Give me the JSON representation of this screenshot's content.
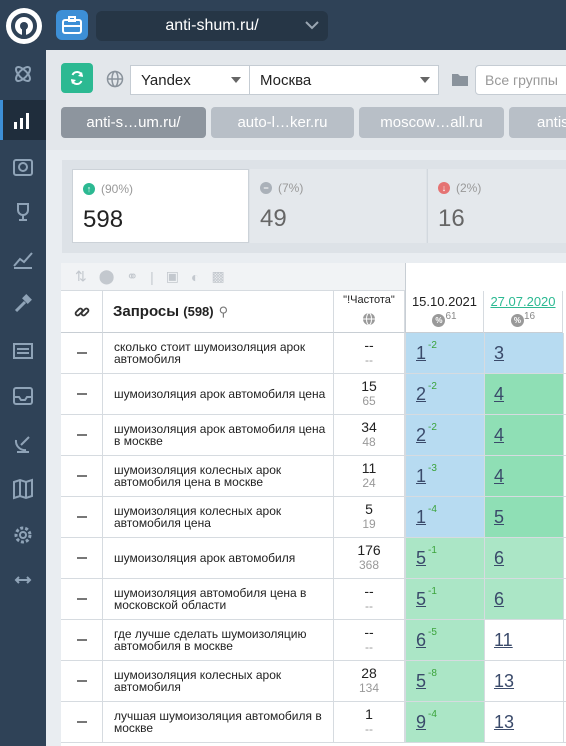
{
  "header": {
    "site": "anti-shum.ru/"
  },
  "toolbar": {
    "engine": "Yandex",
    "region": "Москва",
    "groups_placeholder": "Все группы"
  },
  "tabs": [
    {
      "label": "anti-s…um.ru/"
    },
    {
      "label": "auto-l…ker.ru"
    },
    {
      "label": "moscow…all.ru"
    },
    {
      "label": "antis"
    }
  ],
  "summary": [
    {
      "pct": "(90%)",
      "value": "598",
      "trend": "up"
    },
    {
      "pct": "(7%)",
      "value": "49",
      "trend": "same"
    },
    {
      "pct": "(2%)",
      "value": "16",
      "trend": "down"
    }
  ],
  "table": {
    "queries_label": "Запросы",
    "queries_count": "(598)",
    "freq_label": "\"!Частота\"",
    "date1": "15.10.2021",
    "date1_count": "61",
    "date2": "27.07.2020",
    "date2_count": "16",
    "rows": [
      {
        "query": "сколько стоит шумоизоляция арок автомобиля",
        "freq": "--",
        "freq2": "--",
        "pos1": "1",
        "delta": "-2",
        "pos2": "3",
        "c1": "blue",
        "c2": "blue"
      },
      {
        "query": "шумоизоляция арок автомобиля цена",
        "freq": "15",
        "freq2": "65",
        "pos1": "2",
        "delta": "-2",
        "pos2": "4",
        "c1": "blue",
        "c2": "green"
      },
      {
        "query": "шумоизоляция арок автомобиля цена в москве",
        "freq": "34",
        "freq2": "48",
        "pos1": "2",
        "delta": "-2",
        "pos2": "4",
        "c1": "blue",
        "c2": "green"
      },
      {
        "query": "шумоизоляция колесных арок автомобиля цена в москве",
        "freq": "11",
        "freq2": "24",
        "pos1": "1",
        "delta": "-3",
        "pos2": "4",
        "c1": "blue",
        "c2": "green"
      },
      {
        "query": "шумоизоляция колесных арок автомобиля цена",
        "freq": "5",
        "freq2": "19",
        "pos1": "1",
        "delta": "-4",
        "pos2": "5",
        "c1": "blue",
        "c2": "green"
      },
      {
        "query": "шумоизоляция арок автомобиля",
        "freq": "176",
        "freq2": "368",
        "pos1": "5",
        "delta": "-1",
        "pos2": "6",
        "c1": "lgreen",
        "c2": "lgreen"
      },
      {
        "query": "шумоизоляция автомобиля цена в московской области",
        "freq": "--",
        "freq2": "--",
        "pos1": "5",
        "delta": "-1",
        "pos2": "6",
        "c1": "lgreen",
        "c2": "lgreen"
      },
      {
        "query": "где лучше сделать шумоизоляцию автомобиля в москве",
        "freq": "--",
        "freq2": "--",
        "pos1": "6",
        "delta": "-5",
        "pos2": "11",
        "c1": "lgreen",
        "c2": "white"
      },
      {
        "query": "шумоизоляция колесных арок автомобиля",
        "freq": "28",
        "freq2": "134",
        "pos1": "5",
        "delta": "-8",
        "pos2": "13",
        "c1": "lgreen",
        "c2": "white"
      },
      {
        "query": "лучшая шумоизоляция автомобиля в москве",
        "freq": "1",
        "freq2": "--",
        "pos1": "9",
        "delta": "-4",
        "pos2": "13",
        "c1": "lgreen",
        "c2": "white"
      }
    ]
  }
}
